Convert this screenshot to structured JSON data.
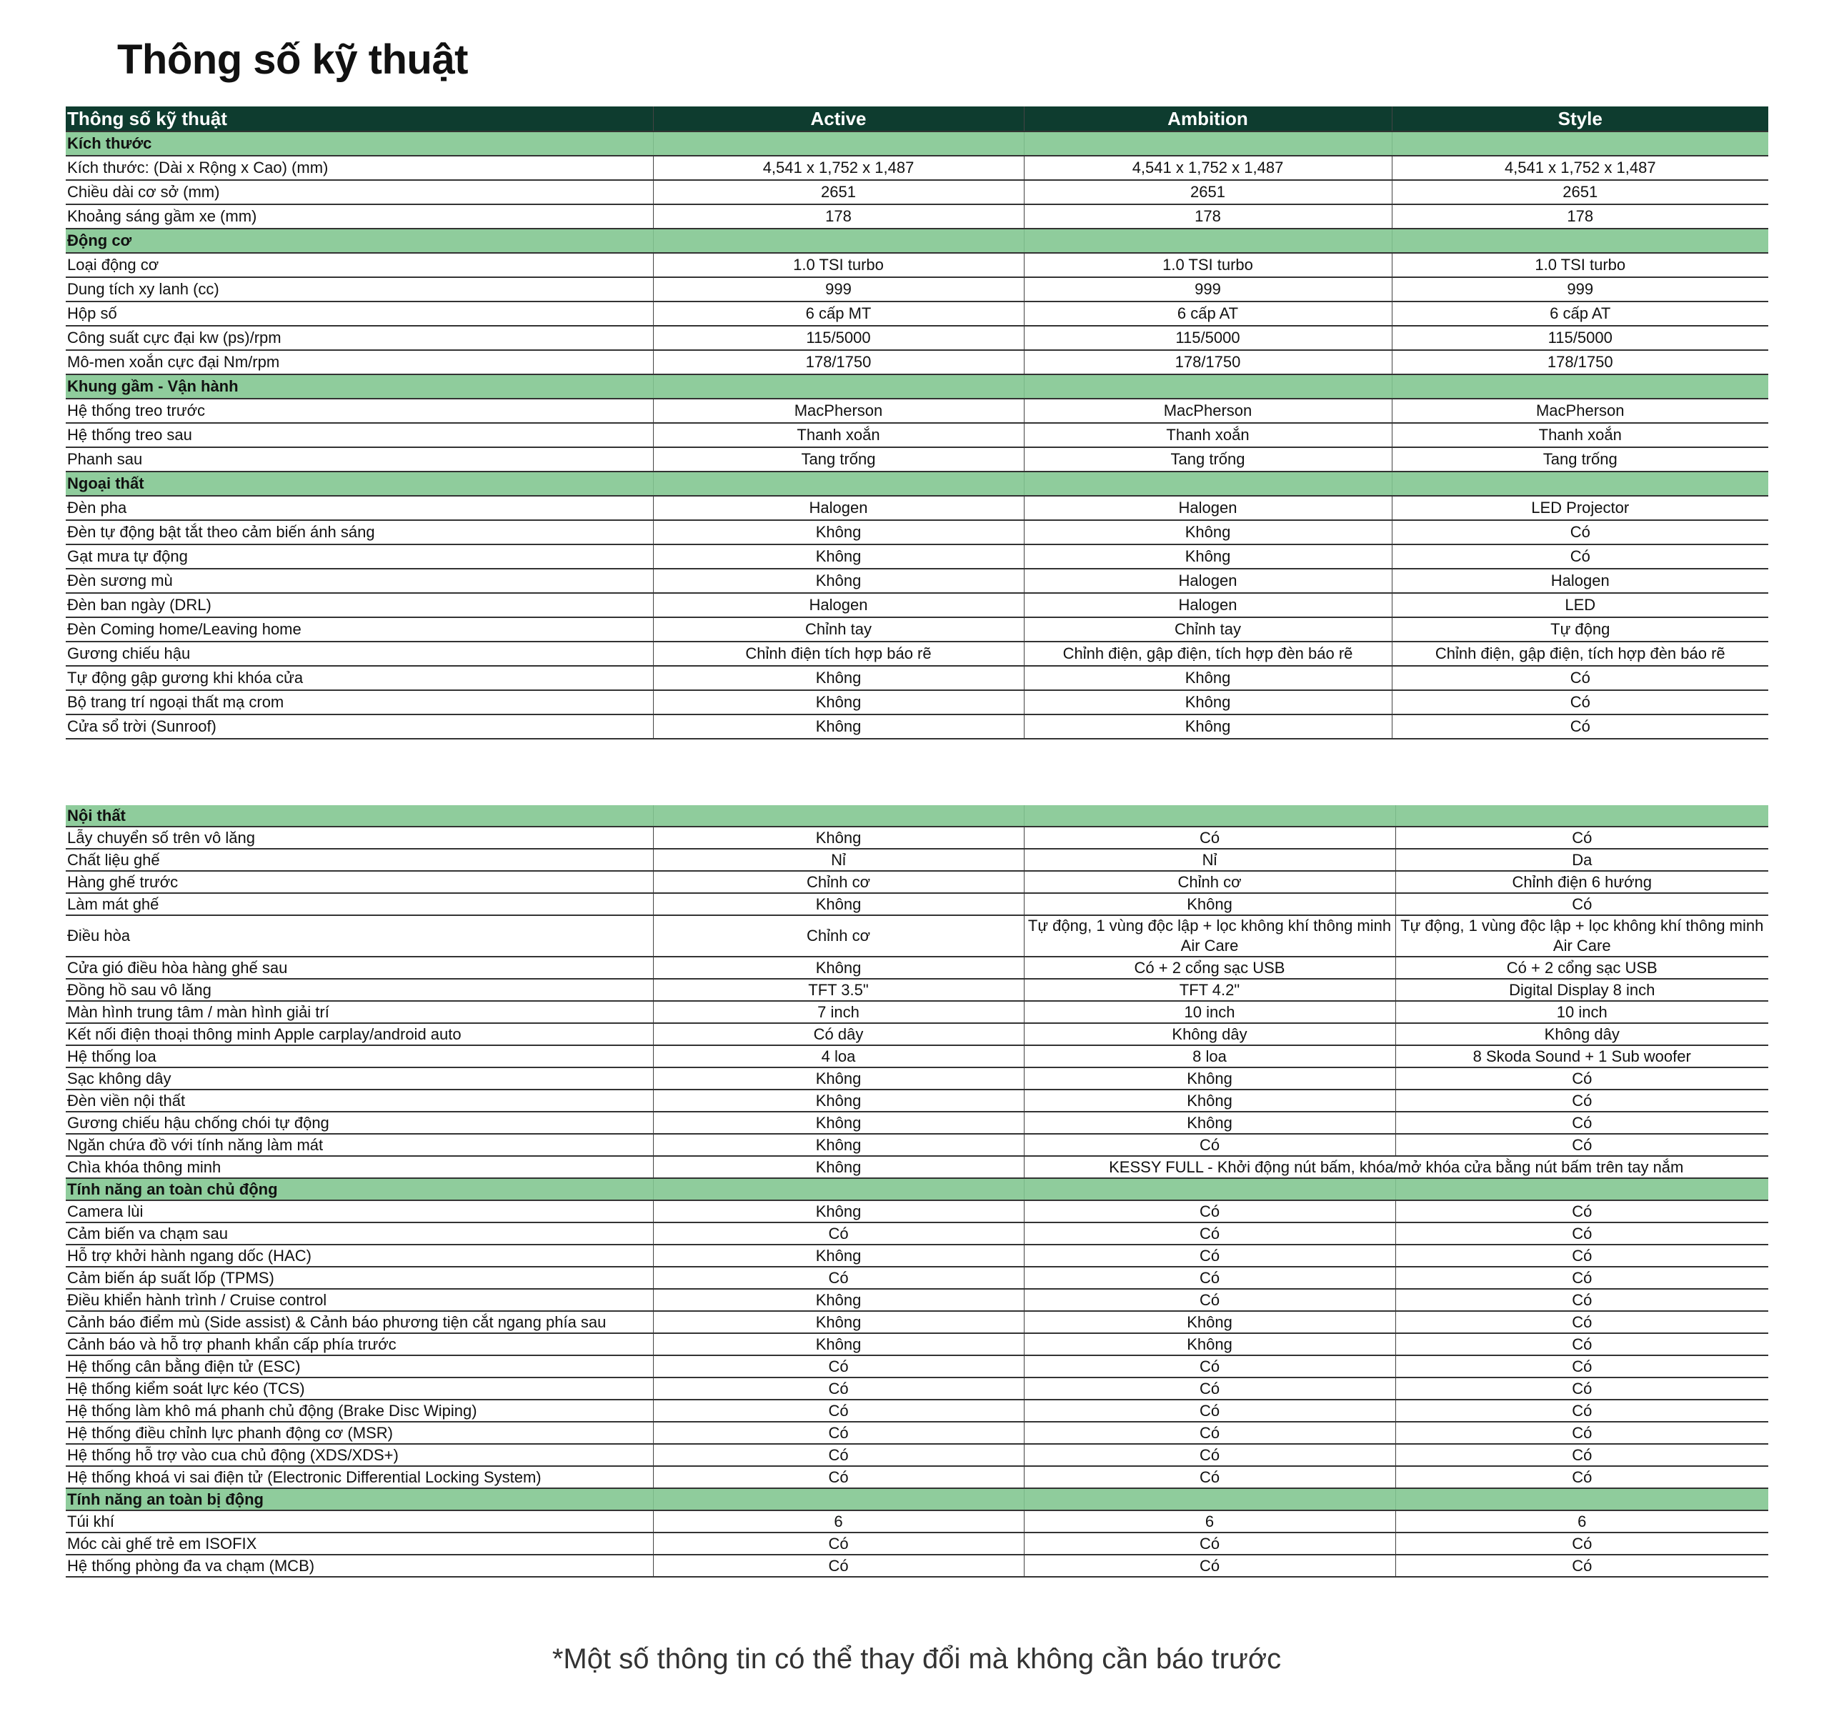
{
  "title": "Thông số kỹ thuật",
  "footnote": "*Một số thông tin có thể thay đổi mà không cần báo trước",
  "colors": {
    "header": "#0e3c2f",
    "section": "#8fcc9c"
  },
  "table1": {
    "headers": [
      "Thông số kỹ thuật",
      "Active",
      "Ambition",
      "Style"
    ],
    "rows": [
      {
        "section": "Kích thước"
      },
      {
        "label": "Kích thước: (Dài x Rộng x Cao) (mm)",
        "values": [
          "4,541 x 1,752 x 1,487",
          "4,541 x 1,752 x 1,487",
          "4,541 x 1,752 x 1,487"
        ]
      },
      {
        "label": "Chiều dài cơ sở (mm)",
        "values": [
          "2651",
          "2651",
          "2651"
        ]
      },
      {
        "label": "Khoảng sáng gầm xe (mm)",
        "values": [
          "178",
          "178",
          "178"
        ]
      },
      {
        "section": "Động cơ"
      },
      {
        "label": "Loại động cơ",
        "values": [
          "1.0 TSI turbo",
          "1.0 TSI turbo",
          "1.0 TSI turbo"
        ]
      },
      {
        "label": "Dung tích xy lanh (cc)",
        "values": [
          "999",
          "999",
          "999"
        ]
      },
      {
        "label": "Hộp số",
        "values": [
          "6 cấp MT",
          "6 cấp AT",
          "6 cấp AT"
        ]
      },
      {
        "label": "Công suất cực đại kw (ps)/rpm",
        "values": [
          "115/5000",
          "115/5000",
          "115/5000"
        ]
      },
      {
        "label": "Mô-men xoắn cực đại Nm/rpm",
        "values": [
          "178/1750",
          "178/1750",
          "178/1750"
        ]
      },
      {
        "section": "Khung gầm - Vận hành"
      },
      {
        "label": "Hệ thống treo trước",
        "values": [
          "MacPherson",
          "MacPherson",
          "MacPherson"
        ]
      },
      {
        "label": "Hệ thống treo sau",
        "values": [
          "Thanh xoắn",
          "Thanh xoắn",
          "Thanh xoắn"
        ]
      },
      {
        "label": "Phanh sau",
        "values": [
          "Tang trống",
          "Tang trống",
          "Tang trống"
        ]
      },
      {
        "section": "Ngoại thất"
      },
      {
        "label": "Đèn pha",
        "values": [
          "Halogen",
          "Halogen",
          "LED Projector"
        ]
      },
      {
        "label": "Đèn tự động bật tắt theo cảm biến ánh sáng",
        "values": [
          "Không",
          "Không",
          "Có"
        ]
      },
      {
        "label": "Gạt mưa tự động",
        "values": [
          "Không",
          "Không",
          "Có"
        ]
      },
      {
        "label": "Đèn sương mù",
        "values": [
          "Không",
          "Halogen",
          "Halogen"
        ]
      },
      {
        "label": "Đèn ban ngày (DRL)",
        "values": [
          "Halogen",
          "Halogen",
          "LED"
        ]
      },
      {
        "label": "Đèn Coming home/Leaving home",
        "values": [
          "Chỉnh tay",
          "Chỉnh tay",
          "Tự động"
        ]
      },
      {
        "label": "Gương chiếu hậu",
        "values": [
          "Chỉnh điện tích hợp báo rẽ",
          "Chỉnh điện, gập điện, tích hợp đèn báo rẽ",
          "Chỉnh điện, gập điện, tích hợp đèn báo rẽ"
        ]
      },
      {
        "label": "Tự động gập gương khi khóa cửa",
        "values": [
          "Không",
          "Không",
          "Có"
        ]
      },
      {
        "label": "Bộ trang trí ngoại thất mạ crom",
        "values": [
          "Không",
          "Không",
          "Có"
        ]
      },
      {
        "label": "Cửa sổ trời (Sunroof)",
        "values": [
          "Không",
          "Không",
          "Có"
        ]
      }
    ]
  },
  "table2": {
    "rows": [
      {
        "section": "Nội thất"
      },
      {
        "label": "Lẫy chuyển số trên vô lăng",
        "values": [
          "Không",
          "Có",
          "Có"
        ]
      },
      {
        "label": "Chất liệu ghế",
        "values": [
          "Nỉ",
          "Nỉ",
          "Da"
        ]
      },
      {
        "label": "Hàng ghế trước",
        "values": [
          "Chỉnh cơ",
          "Chỉnh cơ",
          "Chỉnh điện 6 hướng"
        ]
      },
      {
        "label": "Làm mát ghế",
        "values": [
          "Không",
          "Không",
          "Có"
        ]
      },
      {
        "label": "Điều hòa",
        "tall": true,
        "values": [
          "Chỉnh cơ",
          "Tự động, 1 vùng độc lập + lọc không khí thông minh Air Care",
          "Tự động, 1 vùng độc lập + lọc không khí thông minh Air Care"
        ]
      },
      {
        "label": "Cửa gió điều hòa hàng ghế sau",
        "values": [
          "Không",
          "Có + 2 cổng sạc USB",
          "Có + 2 cổng sạc USB"
        ]
      },
      {
        "label": "Đồng hồ sau vô lăng",
        "values": [
          "TFT 3.5\"",
          "TFT 4.2\"",
          "Digital Display 8 inch"
        ]
      },
      {
        "label": "Màn hình trung tâm / màn hình giải trí",
        "values": [
          "7 inch",
          "10 inch",
          "10 inch"
        ]
      },
      {
        "label": "Kết nối điện thoại thông minh Apple carplay/android auto",
        "values": [
          "Có dây",
          "Không dây",
          "Không dây"
        ]
      },
      {
        "label": "Hệ thống loa",
        "values": [
          "4 loa",
          "8 loa",
          "8 Skoda Sound + 1 Sub woofer"
        ]
      },
      {
        "label": "Sạc không dây",
        "values": [
          "Không",
          "Không",
          "Có"
        ]
      },
      {
        "label": "Đèn viền nội thất",
        "values": [
          "Không",
          "Không",
          "Có"
        ]
      },
      {
        "label": "Gương chiếu hậu chống chói tự động",
        "values": [
          "Không",
          "Không",
          "Có"
        ]
      },
      {
        "label": "Ngăn chứa đồ với tính năng làm mát",
        "values": [
          "Không",
          "Có",
          "Có"
        ]
      },
      {
        "label": "Chìa khóa thông minh",
        "tall": true,
        "values": [
          "Không",
          "KESSY FULL  - Khởi động nút bấm, khóa/mở khóa cửa bằng nút bấm trên tay nắm"
        ]
      },
      {
        "section": "Tính năng an toàn chủ động"
      },
      {
        "label": "Camera lùi",
        "values": [
          "Không",
          "Có",
          "Có"
        ]
      },
      {
        "label": "Cảm biến va chạm sau",
        "values": [
          "Có",
          "Có",
          "Có"
        ]
      },
      {
        "label": "Hỗ trợ khởi hành ngang dốc (HAC)",
        "values": [
          "Không",
          "Có",
          "Có"
        ]
      },
      {
        "label": "Cảm biến áp suất lốp (TPMS)",
        "values": [
          "Có",
          "Có",
          "Có"
        ]
      },
      {
        "label": "Điều khiển hành trình / Cruise control",
        "values": [
          "Không",
          "Có",
          "Có"
        ]
      },
      {
        "label": "Cảnh báo điểm mù (Side assist) & Cảnh báo phương tiện cắt ngang phía sau",
        "values": [
          "Không",
          "Không",
          "Có"
        ]
      },
      {
        "label": "Cảnh báo và hỗ trợ phanh khẩn cấp phía trước",
        "values": [
          "Không",
          "Không",
          "Có"
        ]
      },
      {
        "label": "Hệ thống cân bằng điện tử (ESC)",
        "values": [
          "Có",
          "Có",
          "Có"
        ]
      },
      {
        "label": "Hệ thống kiểm soát lực kéo (TCS)",
        "values": [
          "Có",
          "Có",
          "Có"
        ]
      },
      {
        "label": "Hệ thống làm khô má phanh chủ động (Brake Disc Wiping)",
        "values": [
          "Có",
          "Có",
          "Có"
        ]
      },
      {
        "label": "Hệ thống điều chỉnh lực phanh động cơ (MSR)",
        "values": [
          "Có",
          "Có",
          "Có"
        ]
      },
      {
        "label": "Hệ thống hỗ trợ vào cua chủ động (XDS/XDS+)",
        "values": [
          "Có",
          "Có",
          "Có"
        ]
      },
      {
        "label": "Hệ thống khoá vi sai điện tử (Electronic Differential Locking System)",
        "values": [
          "Có",
          "Có",
          "Có"
        ]
      },
      {
        "section": "Tính năng an toàn bị động"
      },
      {
        "label": "Túi khí",
        "values": [
          "6",
          "6",
          "6"
        ]
      },
      {
        "label": "Móc cài ghế trẻ em ISOFIX",
        "values": [
          "Có",
          "Có",
          "Có"
        ]
      },
      {
        "label": "Hệ thống phòng đa va chạm (MCB)",
        "values": [
          "Có",
          "Có",
          "Có"
        ]
      }
    ]
  }
}
